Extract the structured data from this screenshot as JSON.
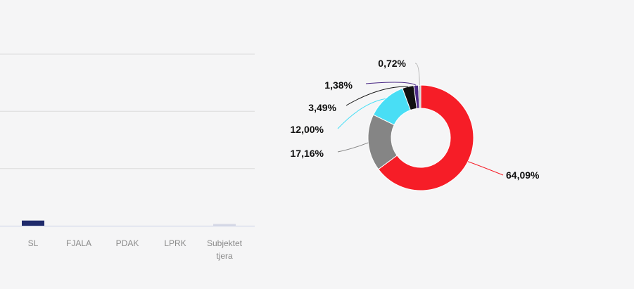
{
  "chart_data": [
    {
      "type": "bar",
      "categories": [
        "SL",
        "FJALA",
        "PDAK",
        "LPRK",
        "Subjektet tjera"
      ],
      "category_lines": [
        [
          "SL"
        ],
        [
          "FJALA"
        ],
        [
          "PDAK"
        ],
        [
          "LPRK"
        ],
        [
          "Subjektet",
          "tjera"
        ]
      ],
      "values": [
        0.3,
        0,
        0,
        0,
        0.1
      ],
      "ylim": [
        0,
        10
      ],
      "gridlines": [
        0,
        3.33,
        6.67,
        10
      ],
      "grid": true,
      "colors": {
        "grid": "#dcdcdc",
        "axis": "#c9cfe6",
        "bars": [
          "#1f2a6b",
          "#1f2a6b",
          "#1f2a6b",
          "#1f2a6b",
          "#d6d9e6"
        ]
      }
    },
    {
      "type": "pie",
      "donut": true,
      "slices": [
        {
          "label": "64,09%",
          "value": 64.09,
          "color": "#f61d27"
        },
        {
          "label": "17,16%",
          "value": 17.16,
          "color": "#858585"
        },
        {
          "label": "12,00%",
          "value": 12.0,
          "color": "#49def5"
        },
        {
          "label": "3,49%",
          "value": 3.49,
          "color": "#111111"
        },
        {
          "label": "1,38%",
          "value": 1.38,
          "color": "#4b2a86"
        },
        {
          "label": "0,72%",
          "value": 0.72,
          "color": "#b8b8b8"
        }
      ]
    }
  ]
}
